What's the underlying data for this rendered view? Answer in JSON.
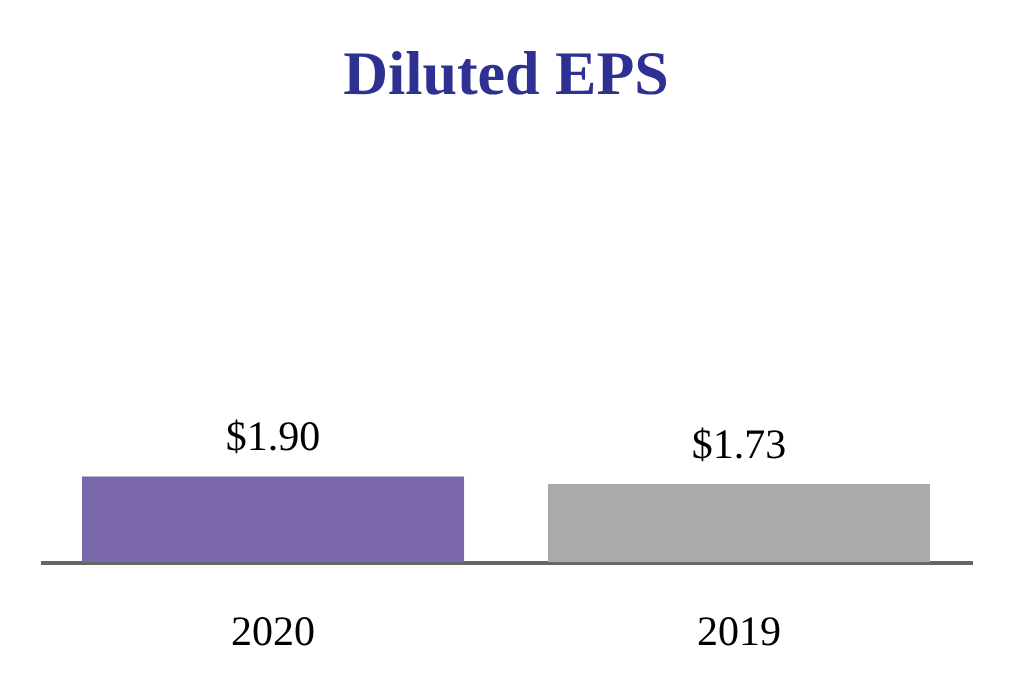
{
  "chart_data": {
    "type": "bar",
    "title": "Diluted EPS",
    "categories": [
      "2020",
      "2019"
    ],
    "values": [
      1.9,
      1.73
    ],
    "colors": [
      "#7b68ac",
      "#aaaaaa"
    ],
    "value_labels": [
      "$1.90",
      "$1.73"
    ]
  }
}
